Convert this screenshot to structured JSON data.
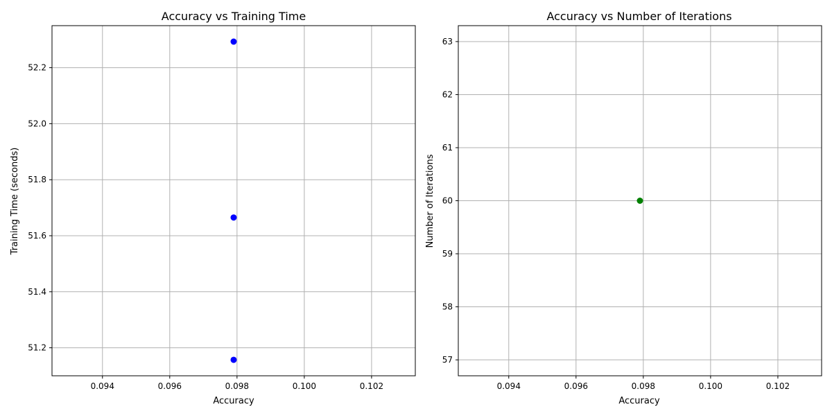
{
  "chart_data": [
    {
      "type": "scatter",
      "title": "Accuracy vs Training Time",
      "xlabel": "Accuracy",
      "ylabel": "Training Time (seconds)",
      "xlim": [
        0.0925,
        0.1033
      ],
      "ylim": [
        51.1,
        52.35
      ],
      "xticks": [
        0.094,
        0.096,
        0.098,
        0.1,
        0.102
      ],
      "xtick_labels": [
        "0.094",
        "0.096",
        "0.098",
        "0.100",
        "0.102"
      ],
      "yticks": [
        51.2,
        51.4,
        51.6,
        51.8,
        52.0,
        52.2
      ],
      "ytick_labels": [
        "51.2",
        "51.4",
        "51.6",
        "51.8",
        "52.0",
        "52.2"
      ],
      "grid": true,
      "color": "#0000ff",
      "points": [
        {
          "x": 0.0979,
          "y": 52.293
        },
        {
          "x": 0.0979,
          "y": 51.665
        },
        {
          "x": 0.0979,
          "y": 51.157
        }
      ]
    },
    {
      "type": "scatter",
      "title": "Accuracy vs Number of Iterations",
      "xlabel": "Accuracy",
      "ylabel": "Number of Iterations",
      "xlim": [
        0.0925,
        0.1033
      ],
      "ylim": [
        56.7,
        63.3
      ],
      "xticks": [
        0.094,
        0.096,
        0.098,
        0.1,
        0.102
      ],
      "xtick_labels": [
        "0.094",
        "0.096",
        "0.098",
        "0.100",
        "0.102"
      ],
      "yticks": [
        57,
        58,
        59,
        60,
        61,
        62,
        63
      ],
      "ytick_labels": [
        "57",
        "58",
        "59",
        "60",
        "61",
        "62",
        "63"
      ],
      "grid": true,
      "color": "#008000",
      "points": [
        {
          "x": 0.0979,
          "y": 60
        }
      ]
    }
  ]
}
